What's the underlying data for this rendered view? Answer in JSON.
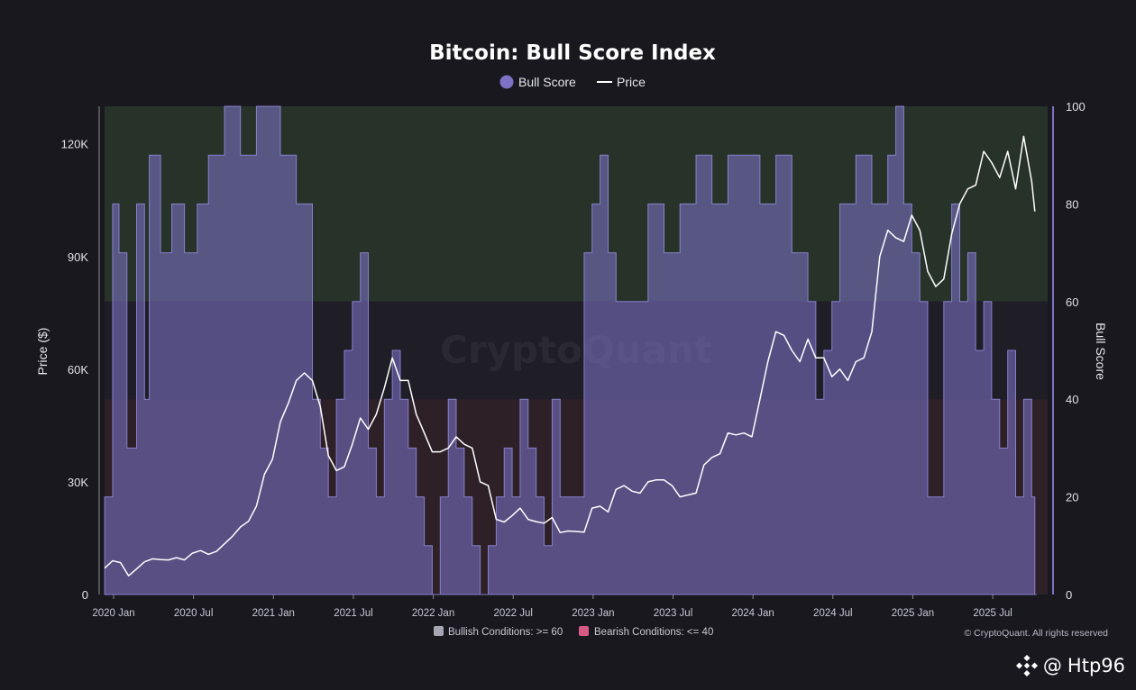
{
  "chart_data": {
    "type": "area",
    "title": "Bitcoin: Bull Score Index",
    "legend": [
      "Bull Score",
      "Price"
    ],
    "ylabel_left": "Price ($)",
    "ylabel_right": "Bull Score",
    "ylim_left": [
      0,
      130000
    ],
    "ylim_right": [
      0,
      100
    ],
    "yticks_left": [
      "0",
      "30K",
      "60K",
      "90K",
      "120K"
    ],
    "yticks_left_values": [
      0,
      30000,
      60000,
      90000,
      120000
    ],
    "yticks_right": [
      "0",
      "20",
      "40",
      "60",
      "80",
      "100"
    ],
    "yticks_right_values": [
      0,
      20,
      40,
      60,
      80,
      100
    ],
    "xticks": [
      "2020 Jan",
      "2020 Jul",
      "2021 Jan",
      "2021 Jul",
      "2022 Jan",
      "2022 Jul",
      "2023 Jan",
      "2023 Jul",
      "2024 Jan",
      "2024 Jul",
      "2025 Jan",
      "2025 Jul"
    ],
    "xticks_values": [
      2020.0,
      2020.5,
      2021.0,
      2021.5,
      2022.0,
      2022.5,
      2023.0,
      2023.5,
      2024.0,
      2024.5,
      2025.0,
      2025.5
    ],
    "xlim": [
      2020.0,
      2025.9
    ],
    "zones": [
      {
        "name": "Bullish Conditions: >= 60",
        "from": 60,
        "to": 100,
        "color": "#273229"
      },
      {
        "name": "Bearish Conditions: <= 40",
        "from": 0,
        "to": 40,
        "color": "#2d2127"
      }
    ],
    "footer_legend": [
      "Bullish Conditions: >= 60",
      "Bearish Conditions: <= 40"
    ],
    "footer_legend_colors": [
      "#a7a7b4",
      "#d65a84"
    ],
    "series": [
      {
        "name": "Bull Score",
        "color": "#7c72c6",
        "x": [
          2020.0,
          2020.05,
          2020.09,
          2020.14,
          2020.2,
          2020.25,
          2020.28,
          2020.35,
          2020.42,
          2020.5,
          2020.58,
          2020.65,
          2020.75,
          2020.85,
          2020.95,
          2021.0,
          2021.1,
          2021.2,
          2021.3,
          2021.35,
          2021.4,
          2021.45,
          2021.5,
          2021.55,
          2021.6,
          2021.65,
          2021.7,
          2021.75,
          2021.8,
          2021.85,
          2021.9,
          2021.95,
          2022.0,
          2022.05,
          2022.1,
          2022.15,
          2022.2,
          2022.25,
          2022.3,
          2022.35,
          2022.4,
          2022.45,
          2022.5,
          2022.55,
          2022.6,
          2022.65,
          2022.7,
          2022.75,
          2022.8,
          2022.85,
          2022.9,
          2022.95,
          2023.0,
          2023.05,
          2023.1,
          2023.15,
          2023.2,
          2023.3,
          2023.4,
          2023.5,
          2023.6,
          2023.7,
          2023.8,
          2023.9,
          2024.0,
          2024.1,
          2024.2,
          2024.3,
          2024.4,
          2024.45,
          2024.5,
          2024.55,
          2024.6,
          2024.7,
          2024.8,
          2024.9,
          2024.95,
          2025.0,
          2025.05,
          2025.1,
          2025.15,
          2025.2,
          2025.25,
          2025.3,
          2025.35,
          2025.4,
          2025.45,
          2025.5,
          2025.55,
          2025.6,
          2025.65,
          2025.7,
          2025.75,
          2025.8,
          2025.82
        ],
        "values": [
          20,
          80,
          70,
          30,
          80,
          40,
          90,
          70,
          80,
          70,
          80,
          90,
          100,
          90,
          100,
          100,
          90,
          80,
          40,
          30,
          20,
          40,
          50,
          60,
          70,
          30,
          20,
          40,
          50,
          40,
          30,
          20,
          10,
          0,
          20,
          40,
          30,
          20,
          10,
          0,
          10,
          20,
          30,
          20,
          40,
          30,
          20,
          10,
          40,
          20,
          20,
          20,
          70,
          80,
          90,
          70,
          60,
          60,
          80,
          70,
          80,
          90,
          80,
          90,
          90,
          80,
          90,
          70,
          60,
          40,
          50,
          60,
          80,
          90,
          80,
          90,
          100,
          80,
          70,
          60,
          20,
          20,
          60,
          80,
          60,
          70,
          50,
          60,
          40,
          30,
          50,
          20,
          40,
          20,
          0
        ]
      },
      {
        "name": "Price",
        "color": "#ffffff",
        "x": [
          2020.0,
          2020.05,
          2020.1,
          2020.15,
          2020.2,
          2020.25,
          2020.3,
          2020.35,
          2020.4,
          2020.45,
          2020.5,
          2020.55,
          2020.6,
          2020.65,
          2020.7,
          2020.75,
          2020.8,
          2020.85,
          2020.9,
          2020.95,
          2021.0,
          2021.05,
          2021.1,
          2021.15,
          2021.2,
          2021.25,
          2021.3,
          2021.35,
          2021.4,
          2021.45,
          2021.5,
          2021.55,
          2021.6,
          2021.65,
          2021.7,
          2021.75,
          2021.8,
          2021.85,
          2021.9,
          2021.95,
          2022.0,
          2022.05,
          2022.1,
          2022.15,
          2022.2,
          2022.25,
          2022.3,
          2022.35,
          2022.4,
          2022.45,
          2022.5,
          2022.55,
          2022.6,
          2022.65,
          2022.7,
          2022.75,
          2022.8,
          2022.85,
          2022.9,
          2022.95,
          2023.0,
          2023.05,
          2023.1,
          2023.15,
          2023.2,
          2023.25,
          2023.3,
          2023.35,
          2023.4,
          2023.45,
          2023.5,
          2023.55,
          2023.6,
          2023.65,
          2023.7,
          2023.75,
          2023.8,
          2023.85,
          2023.9,
          2023.95,
          2024.0,
          2024.05,
          2024.1,
          2024.15,
          2024.2,
          2024.25,
          2024.3,
          2024.35,
          2024.4,
          2024.45,
          2024.5,
          2024.55,
          2024.6,
          2024.65,
          2024.7,
          2024.75,
          2024.8,
          2024.85,
          2024.9,
          2024.95,
          2025.0,
          2025.05,
          2025.1,
          2025.15,
          2025.2,
          2025.25,
          2025.3,
          2025.35,
          2025.4,
          2025.45,
          2025.5,
          2025.55,
          2025.6,
          2025.65,
          2025.7,
          2025.75,
          2025.8,
          2025.82
        ],
        "values": [
          7000,
          9000,
          8500,
          5000,
          6800,
          8700,
          9500,
          9300,
          9200,
          9800,
          9200,
          11000,
          11700,
          10700,
          11500,
          13500,
          15500,
          18000,
          19500,
          23500,
          32000,
          36000,
          46000,
          51000,
          57000,
          59000,
          57000,
          50000,
          37000,
          33000,
          34000,
          40000,
          47000,
          44000,
          48000,
          55000,
          63000,
          57000,
          57000,
          48000,
          43000,
          38000,
          38000,
          39000,
          42000,
          40000,
          39000,
          30000,
          29000,
          20000,
          19300,
          21000,
          23000,
          20000,
          19400,
          19000,
          20500,
          16500,
          16900,
          16800,
          16600,
          23000,
          23500,
          22000,
          28000,
          29000,
          27500,
          27000,
          30000,
          30500,
          30500,
          29000,
          26000,
          26500,
          27000,
          34500,
          36500,
          37500,
          43000,
          42500,
          43000,
          42000,
          52000,
          62000,
          70000,
          69000,
          65000,
          62000,
          68000,
          63000,
          63000,
          58000,
          60000,
          57000,
          62000,
          63000,
          70000,
          90000,
          97000,
          95000,
          94000,
          101000,
          97000,
          86000,
          82000,
          84000,
          96000,
          104000,
          108000,
          109000,
          118000,
          115000,
          111000,
          118000,
          108000,
          122000,
          110000,
          102000
        ]
      }
    ],
    "watermark": "CryptoQuant",
    "copyright": "© CryptoQuant. All rights reserved"
  },
  "credit": {
    "handle": "Htp96",
    "at": "@"
  }
}
